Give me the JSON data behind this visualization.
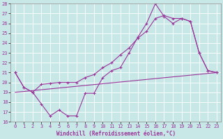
{
  "xlabel": "Windchill (Refroidissement éolien,°C)",
  "background_color": "#c8e8e8",
  "grid_color": "#aacccc",
  "line_color": "#993399",
  "xlim": [
    -0.5,
    23.5
  ],
  "ylim": [
    16,
    28
  ],
  "x_ticks": [
    0,
    1,
    2,
    3,
    4,
    5,
    6,
    7,
    8,
    9,
    10,
    11,
    12,
    13,
    14,
    15,
    16,
    17,
    18,
    19,
    20,
    21,
    22,
    23
  ],
  "y_ticks": [
    16,
    17,
    18,
    19,
    20,
    21,
    22,
    23,
    24,
    25,
    26,
    27,
    28
  ],
  "line1_x": [
    0,
    1,
    2,
    3,
    4,
    5,
    6,
    7,
    8,
    9,
    10,
    11,
    12,
    13,
    14,
    15,
    16,
    17,
    18,
    19,
    20,
    21,
    22,
    23
  ],
  "line1_y": [
    21.0,
    19.5,
    19.0,
    17.8,
    16.6,
    17.2,
    16.6,
    16.6,
    18.9,
    18.9,
    20.5,
    21.2,
    21.5,
    23.0,
    24.6,
    26.0,
    28.0,
    26.7,
    26.0,
    26.5,
    26.2,
    23.0,
    21.2,
    21.0
  ],
  "line2_x": [
    0,
    23
  ],
  "line2_y": [
    19.0,
    21.0
  ],
  "line3_x": [
    0,
    1,
    2,
    3,
    4,
    5,
    6,
    7,
    8,
    9,
    10,
    11,
    12,
    13,
    14,
    15,
    16,
    17,
    18,
    19,
    20,
    21,
    22,
    23
  ],
  "line3_y": [
    21.0,
    19.5,
    19.0,
    19.8,
    19.9,
    20.0,
    20.0,
    20.0,
    20.5,
    20.8,
    21.5,
    22.0,
    22.8,
    23.5,
    24.5,
    25.2,
    26.5,
    26.8,
    26.5,
    26.5,
    26.2,
    23.0,
    21.2,
    21.0
  ]
}
